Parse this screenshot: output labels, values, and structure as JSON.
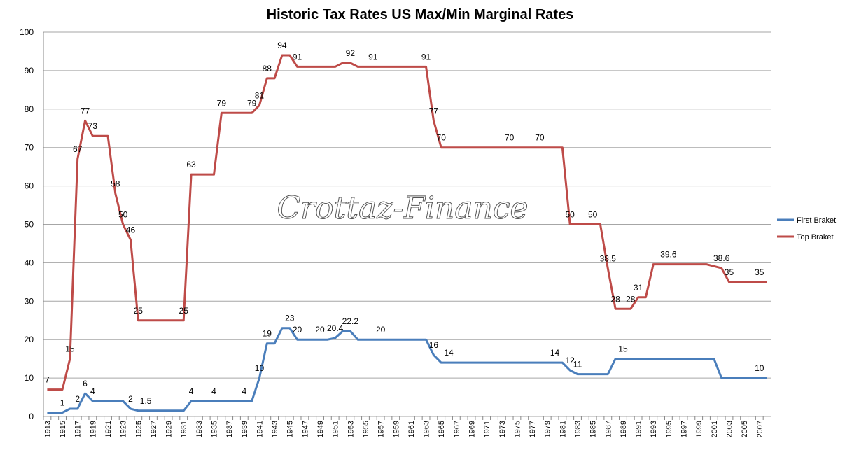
{
  "chart_data": {
    "type": "line",
    "title": "Historic Tax Rates US Max/Min Marginal Rates",
    "watermark": "Crottaz-Finance",
    "categories": [
      "1913",
      null,
      "1915",
      null,
      "1917",
      null,
      "1919",
      null,
      "1921",
      null,
      "1923",
      null,
      "1925",
      null,
      "1927",
      null,
      "1929",
      null,
      "1931",
      null,
      "1933",
      null,
      "1935",
      null,
      "1937",
      null,
      "1939",
      null,
      "1941",
      null,
      "1943",
      null,
      "1945",
      null,
      "1947",
      null,
      "1949",
      null,
      "1951",
      null,
      "1953",
      null,
      "1955",
      null,
      "1957",
      null,
      "1959",
      null,
      "1961",
      null,
      "1963",
      null,
      "1965",
      null,
      "1967",
      null,
      "1969",
      null,
      "1971",
      null,
      "1973",
      null,
      "1975",
      null,
      "1977",
      null,
      "1979",
      null,
      "1981",
      null,
      "1983",
      null,
      "1985",
      null,
      "1987",
      null,
      "1989",
      null,
      "1991",
      null,
      "1993",
      null,
      "1995",
      null,
      "1997",
      null,
      "1999",
      null,
      "2001",
      null,
      "2003",
      null,
      "2005",
      null,
      "2007",
      null
    ],
    "series": [
      {
        "name": "First Braket",
        "color": "#4a7ebb",
        "values": [
          1,
          1,
          1,
          2,
          2,
          6,
          4,
          4,
          4,
          4,
          4,
          2,
          1.5,
          1.5,
          1.5,
          1.5,
          1.5,
          1.5,
          1.5,
          4,
          4,
          4,
          4,
          4,
          4,
          4,
          4,
          4,
          10,
          19,
          19,
          23,
          23,
          20,
          20,
          20,
          20,
          20,
          20.4,
          22.2,
          22.2,
          20,
          20,
          20,
          20,
          20,
          20,
          20,
          20,
          20,
          20,
          16,
          14,
          14,
          14,
          14,
          14,
          14,
          14,
          14,
          14,
          14,
          14,
          14,
          14,
          14,
          14,
          14,
          14,
          12,
          11,
          11,
          11,
          11,
          11,
          15,
          15,
          15,
          15,
          15,
          15,
          15,
          15,
          15,
          15,
          15,
          15,
          15,
          15,
          10,
          10,
          10,
          10,
          10,
          10,
          10
        ],
        "value_labels": [
          null,
          null,
          "1",
          null,
          "2",
          "6",
          "4",
          null,
          null,
          null,
          null,
          "2",
          null,
          "1.5",
          null,
          null,
          null,
          null,
          null,
          "4",
          null,
          null,
          "4",
          null,
          null,
          null,
          "4",
          null,
          "10",
          "19",
          null,
          null,
          "23",
          "20",
          null,
          null,
          "20",
          null,
          "20.4",
          null,
          "22.2",
          null,
          null,
          null,
          "20",
          null,
          null,
          null,
          null,
          null,
          null,
          "16",
          null,
          "14",
          null,
          null,
          null,
          null,
          null,
          null,
          null,
          null,
          null,
          null,
          null,
          null,
          null,
          "14",
          null,
          "12",
          "11",
          null,
          null,
          null,
          null,
          null,
          "15",
          null,
          null,
          null,
          null,
          null,
          null,
          null,
          null,
          null,
          null,
          null,
          null,
          null,
          null,
          null,
          null,
          null,
          "10",
          null
        ]
      },
      {
        "name": "Top Braket",
        "color": "#be4b48",
        "values": [
          7,
          7,
          7,
          15,
          67,
          77,
          73,
          73,
          73,
          58,
          50,
          46,
          25,
          25,
          25,
          25,
          25,
          25,
          25,
          63,
          63,
          63,
          63,
          79,
          79,
          79,
          79,
          79,
          81,
          88,
          88,
          94,
          94,
          91,
          91,
          91,
          91,
          91,
          91,
          92,
          92,
          91,
          91,
          91,
          91,
          91,
          91,
          91,
          91,
          91,
          91,
          77,
          70,
          70,
          70,
          70,
          70,
          70,
          70,
          70,
          70,
          70,
          70,
          70,
          70,
          70,
          70,
          70,
          70,
          50,
          50,
          50,
          50,
          50,
          38.5,
          28,
          28,
          28,
          31,
          31,
          39.6,
          39.6,
          39.6,
          39.6,
          39.6,
          39.6,
          39.6,
          39.6,
          39.1,
          38.6,
          35,
          35,
          35,
          35,
          35,
          35
        ],
        "value_labels": [
          "7",
          null,
          null,
          "15",
          "67",
          "77",
          "73",
          null,
          null,
          "58",
          "50",
          "46",
          "25",
          null,
          null,
          null,
          null,
          null,
          "25",
          "63",
          null,
          null,
          null,
          "79",
          null,
          null,
          null,
          "79",
          "81",
          "88",
          null,
          "94",
          null,
          "91",
          null,
          null,
          null,
          null,
          null,
          null,
          "92",
          null,
          null,
          "91",
          null,
          null,
          null,
          null,
          null,
          null,
          "91",
          "77",
          "70",
          null,
          null,
          null,
          null,
          null,
          null,
          null,
          null,
          "70",
          null,
          null,
          null,
          "70",
          null,
          null,
          null,
          "50",
          null,
          null,
          "50",
          null,
          "38.5",
          "28",
          null,
          "28",
          "31",
          null,
          null,
          null,
          "39.6",
          null,
          null,
          null,
          null,
          null,
          null,
          "38.6",
          "35",
          null,
          null,
          null,
          "35",
          null
        ]
      }
    ],
    "ylim": [
      0,
      100
    ],
    "yticks": [
      0,
      10,
      20,
      30,
      40,
      50,
      60,
      70,
      80,
      90,
      100
    ],
    "grid": true,
    "legend": "right"
  }
}
